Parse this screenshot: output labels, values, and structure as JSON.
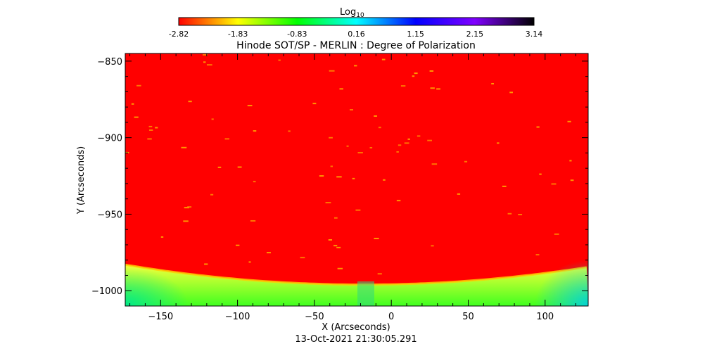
{
  "colorbar": {
    "label_main": "Log",
    "label_sub": "10",
    "ticks": [
      "-2.82",
      "-1.83",
      "-0.83",
      "0.16",
      "1.15",
      "2.15",
      "3.14"
    ],
    "colors": [
      "#ff0000",
      "#ffff00",
      "#00ff00",
      "#00ffff",
      "#0000ff",
      "#8000ff",
      "#000000"
    ]
  },
  "footer": {
    "timestamp": "13-Oct-2021 21:30:05.291"
  },
  "chart_data": {
    "type": "heatmap",
    "title": "Hinode SOT/SP - MERLIN : Degree of Polarization",
    "xlabel": "X (Arcseconds)",
    "ylabel": "Y (Arcseconds)",
    "xlim": [
      -173,
      128
    ],
    "ylim": [
      -1010,
      -845
    ],
    "x_ticks": [
      -150,
      -100,
      -50,
      0,
      50,
      100
    ],
    "y_ticks": [
      -850,
      -900,
      -950,
      -1000
    ],
    "x_tick_labels": [
      "−150",
      "−100",
      "−50",
      "0",
      "50",
      "100"
    ],
    "y_tick_labels": [
      "−850",
      "−900",
      "−950",
      "−1000"
    ],
    "value_range": [
      -2.82,
      3.14
    ],
    "limb_y": -996,
    "limb_y_at_edges": -983,
    "colors": {
      "on_disk": "#ff0000",
      "limb_band": "#ffff40",
      "off_limb": "#40ff20",
      "off_limb_edge": "#00e0c0"
    },
    "grid": false
  }
}
